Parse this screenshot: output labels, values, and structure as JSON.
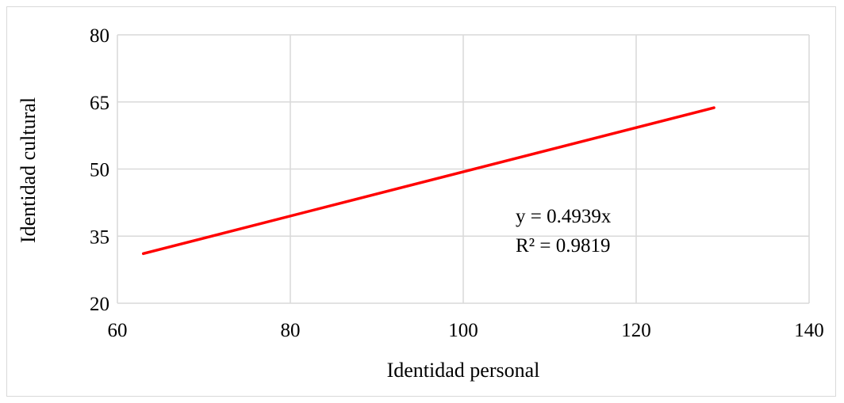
{
  "chart_data": {
    "type": "line",
    "xlabel": "Identidad personal",
    "ylabel": "Identidad cultural",
    "xlim": [
      60,
      140
    ],
    "ylim": [
      20,
      80
    ],
    "xticks": [
      60,
      80,
      100,
      120,
      140
    ],
    "yticks": [
      20,
      35,
      50,
      65,
      80
    ],
    "grid": true,
    "series": [
      {
        "x": [
          63,
          129
        ],
        "y": [
          31.1,
          63.7
        ],
        "color": "#ff0000"
      }
    ],
    "annotation": {
      "equation": "y = 0.4939x",
      "r2": "R² = 0.9819"
    }
  }
}
